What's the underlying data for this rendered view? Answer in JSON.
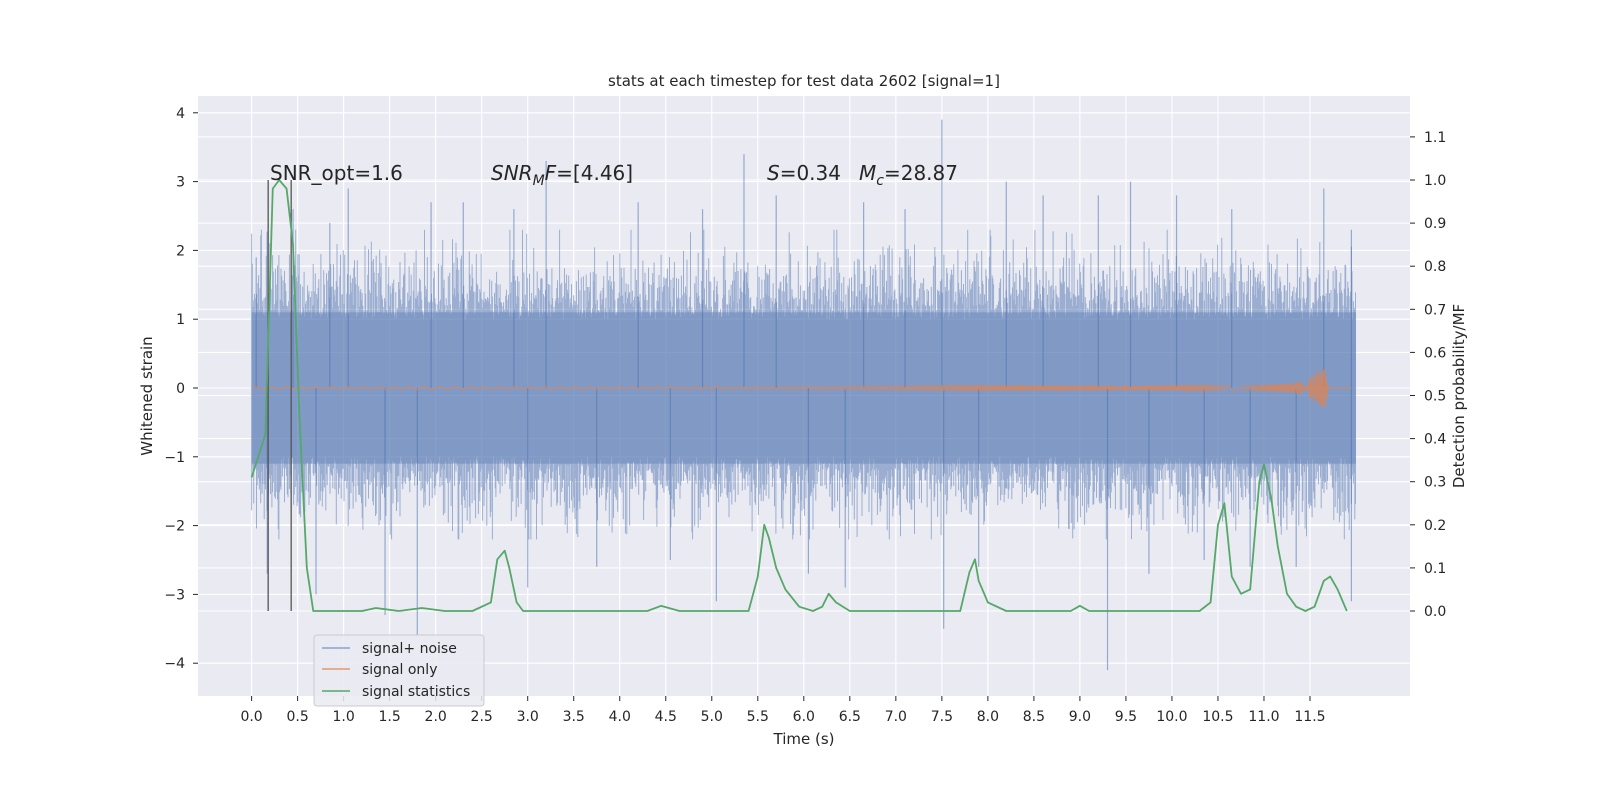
{
  "chart_data": {
    "type": "line",
    "title": "stats at each timestep for test data 2602 [signal=1]",
    "xlabel": "Time (s)",
    "ylabel": "Whitened strain",
    "ylabel_right": "Detection probability/MF",
    "xlim": [
      -0.5,
      12.4
    ],
    "ylim": [
      -4.45,
      4.25
    ],
    "ylim_right": [
      -0.2,
      1.2
    ],
    "x_ticks": [
      0.0,
      0.5,
      1.0,
      1.5,
      2.0,
      2.5,
      3.0,
      3.5,
      4.0,
      4.5,
      5.0,
      5.5,
      6.0,
      6.5,
      7.0,
      7.5,
      8.0,
      8.5,
      9.0,
      9.5,
      10.0,
      10.5,
      11.0,
      11.5
    ],
    "x_tick_labels": [
      "0.0",
      "0.5",
      "1.0",
      "1.5",
      "2.0",
      "2.5",
      "3.0",
      "3.5",
      "4.0",
      "4.5",
      "5.0",
      "5.5",
      "6.0",
      "6.5",
      "7.0",
      "7.5",
      "8.0",
      "8.5",
      "9.0",
      "9.5",
      "10.0",
      "10.5",
      "11.0",
      "11.5"
    ],
    "y_ticks": [
      -4,
      -3,
      -2,
      -1,
      0,
      1,
      2,
      3,
      4
    ],
    "y_tick_labels": [
      "−4",
      "−3",
      "−2",
      "−1",
      "0",
      "1",
      "2",
      "3",
      "4"
    ],
    "y_ticks_right": [
      0.0,
      0.1,
      0.2,
      0.3,
      0.4,
      0.5,
      0.6,
      0.7,
      0.8,
      0.9,
      1.0,
      1.1
    ],
    "y_tick_labels_right": [
      "0.0",
      "0.1",
      "0.2",
      "0.3",
      "0.4",
      "0.5",
      "0.6",
      "0.7",
      "0.8",
      "0.9",
      "1.0",
      "1.1"
    ],
    "grid": true,
    "legend_position": "lower-left",
    "annotations": [
      "SNR_opt=1.6",
      "SNR_MF=[4.46]",
      "S=0.34",
      "M_c=28.87"
    ],
    "vlines": [
      0.18,
      0.43
    ],
    "colors": {
      "noise": "#4c72b0",
      "signal": "#dd8452",
      "stats": "#55a868",
      "background": "#eaeaf2",
      "grid": "#ffffff",
      "vline": "#555555"
    },
    "series": [
      {
        "name": "signal+ noise",
        "description": "dense whitened strain time series, 0.0 to 12.0 s",
        "x_range": [
          0.0,
          12.0
        ],
        "typical_envelope": [
          -1.6,
          1.7
        ],
        "spikes": [
          [
            0.05,
            1.9
          ],
          [
            0.17,
            -2.7
          ],
          [
            0.45,
            2.6
          ],
          [
            0.7,
            -3.0
          ],
          [
            0.85,
            2.4
          ],
          [
            1.05,
            2.9
          ],
          [
            1.45,
            -3.3
          ],
          [
            1.8,
            -3.6
          ],
          [
            1.95,
            2.7
          ],
          [
            2.3,
            2.7
          ],
          [
            2.85,
            2.6
          ],
          [
            3.0,
            -2.9
          ],
          [
            3.2,
            3.3
          ],
          [
            3.75,
            -2.6
          ],
          [
            4.2,
            2.7
          ],
          [
            4.55,
            -2.5
          ],
          [
            4.9,
            2.6
          ],
          [
            5.05,
            -3.1
          ],
          [
            5.35,
            3.4
          ],
          [
            5.7,
            2.8
          ],
          [
            6.05,
            -2.7
          ],
          [
            6.45,
            -2.9
          ],
          [
            6.65,
            2.7
          ],
          [
            7.1,
            2.6
          ],
          [
            7.5,
            3.9
          ],
          [
            7.52,
            -3.5
          ],
          [
            7.9,
            -2.6
          ],
          [
            8.2,
            3.0
          ],
          [
            8.6,
            2.8
          ],
          [
            9.2,
            2.8
          ],
          [
            9.3,
            -4.1
          ],
          [
            9.55,
            3.0
          ],
          [
            9.75,
            -2.7
          ],
          [
            10.05,
            2.8
          ],
          [
            10.35,
            -2.5
          ],
          [
            10.65,
            2.6
          ],
          [
            10.85,
            -2.6
          ],
          [
            11.35,
            -2.6
          ],
          [
            11.65,
            2.9
          ],
          [
            11.95,
            -3.1
          ],
          [
            11.95,
            2.3
          ]
        ]
      },
      {
        "name": "signal only",
        "description": "chirp: near zero, amplitude grows near merger",
        "x": [
          0.0,
          11.0,
          11.3,
          11.45,
          11.55,
          11.62,
          11.66,
          11.7
        ],
        "amplitude": [
          0.02,
          0.04,
          0.07,
          0.12,
          0.2,
          0.28,
          0.32,
          0.0
        ]
      },
      {
        "name": "signal statistics",
        "x": [
          0.0,
          0.15,
          0.23,
          0.3,
          0.38,
          0.45,
          0.52,
          0.6,
          0.67,
          0.73,
          0.8,
          1.0,
          1.2,
          1.35,
          1.6,
          1.85,
          2.1,
          2.4,
          2.6,
          2.67,
          2.75,
          2.8,
          2.88,
          2.95,
          3.2,
          4.0,
          4.3,
          4.45,
          4.65,
          5.0,
          5.4,
          5.5,
          5.57,
          5.62,
          5.7,
          5.8,
          5.95,
          6.1,
          6.2,
          6.27,
          6.35,
          6.5,
          6.7,
          7.0,
          7.4,
          7.7,
          7.8,
          7.86,
          7.9,
          8.0,
          8.2,
          8.6,
          8.9,
          9.0,
          9.1,
          10.3,
          10.42,
          10.5,
          10.57,
          10.65,
          10.75,
          10.85,
          10.95,
          11.0,
          11.08,
          11.15,
          11.25,
          11.35,
          11.45,
          11.55,
          11.65,
          11.72,
          11.8,
          11.9
        ],
        "values": [
          0.31,
          0.41,
          0.98,
          1.0,
          0.98,
          0.85,
          0.45,
          0.1,
          0.0,
          0.0,
          0.0,
          0.0,
          0.0,
          0.007,
          0.0,
          0.007,
          0.0,
          0.0,
          0.02,
          0.12,
          0.14,
          0.1,
          0.02,
          0.0,
          0.0,
          0.0,
          0.0,
          0.012,
          0.0,
          0.0,
          0.0,
          0.08,
          0.2,
          0.17,
          0.1,
          0.05,
          0.01,
          0.0,
          0.01,
          0.04,
          0.02,
          0.0,
          0.0,
          0.0,
          0.0,
          0.0,
          0.09,
          0.12,
          0.07,
          0.02,
          0.0,
          0.0,
          0.0,
          0.012,
          0.0,
          0.0,
          0.02,
          0.2,
          0.25,
          0.08,
          0.04,
          0.05,
          0.3,
          0.34,
          0.26,
          0.15,
          0.04,
          0.01,
          0.0,
          0.01,
          0.07,
          0.08,
          0.05,
          0.0
        ]
      }
    ]
  }
}
